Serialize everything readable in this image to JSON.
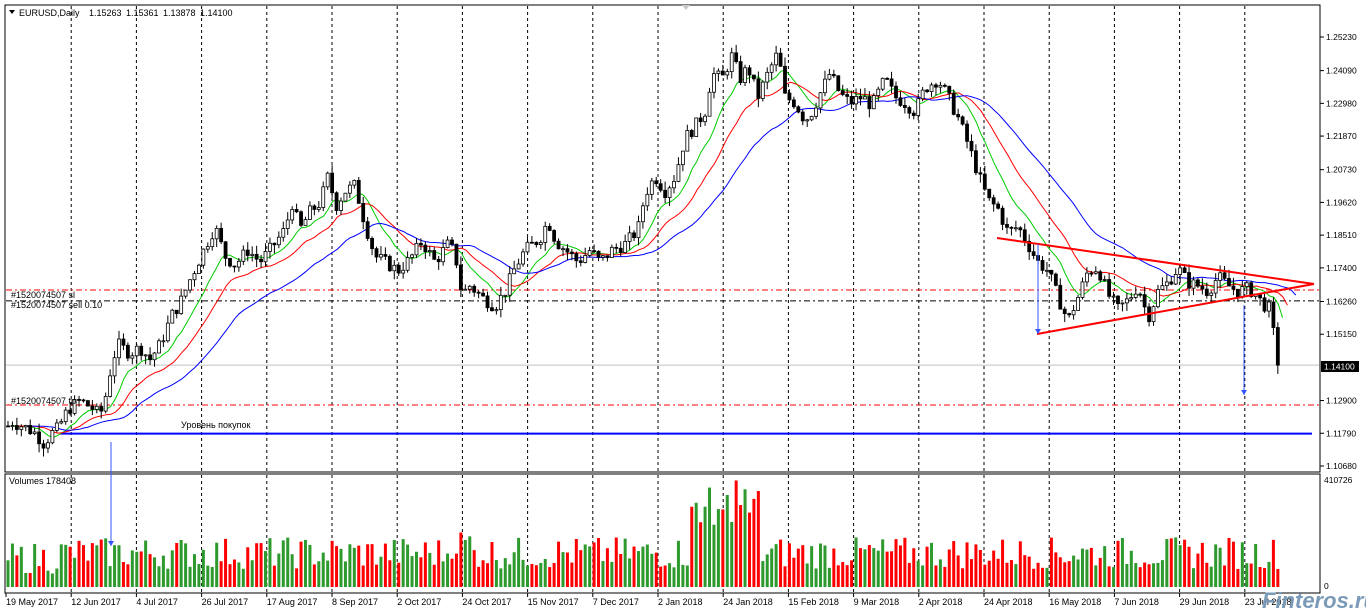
{
  "chart_header": {
    "symbol": "EURUSD,Daily",
    "open": "1.15263",
    "high": "1.15361",
    "low": "1.13878",
    "close": "1.14100"
  },
  "price_axis": [
    "1.25230",
    "1.24090",
    "1.22980",
    "1.21870",
    "1.20730",
    "1.19620",
    "1.18510",
    "1.17400",
    "1.16260",
    "1.15150",
    "1.14100",
    "1.12900",
    "1.11790",
    "1.10680"
  ],
  "current_price": "1.14100",
  "volume_panel": {
    "label": "Volumes 178408",
    "max_label": "410726",
    "zero_label": "0"
  },
  "date_axis": [
    "19 May 2017",
    "12 Jun 2017",
    "4 Jul 2017",
    "26 Jul 2017",
    "17 Aug 2017",
    "8 Sep 2017",
    "2 Oct 2017",
    "24 Oct 2017",
    "15 Nov 2017",
    "7 Dec 2017",
    "2 Jan 2018",
    "24 Jan 2018",
    "15 Feb 2018",
    "9 Mar 2018",
    "2 Apr 2018",
    "24 Apr 2018",
    "16 May 2018",
    "7 Jun 2018",
    "29 Jun 2018",
    "23 Jul 2018"
  ],
  "order_lines": {
    "sl_label": "#1520074507 sl",
    "sell_label": "#1520074507 sell 0.10",
    "tp_label": "#1520074507 tp",
    "sl_price": 1.1665,
    "sell_price": 1.1628,
    "tp_price": 1.1275
  },
  "buy_level": {
    "label": "Уровень покупок",
    "price": 1.1178
  },
  "watermark": "Finteros.ru",
  "colors": {
    "bull_volume": "#2e9a2e",
    "bear_volume": "#ff0000",
    "ma_fast": "#00cc00",
    "ma_mid": "#ff0000",
    "ma_slow": "#0000ff",
    "buy_level": "#0000ff",
    "triangle": "#ff0000"
  }
}
